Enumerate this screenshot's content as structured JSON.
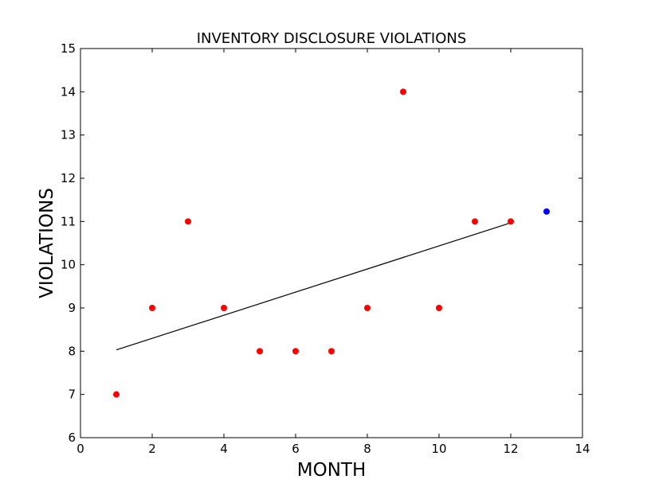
{
  "chart_data": {
    "type": "scatter",
    "title": "INVENTORY DISCLOSURE VIOLATIONS",
    "xlabel": "MONTH",
    "ylabel": "VIOLATIONS",
    "xlim": [
      0,
      14
    ],
    "ylim": [
      6,
      15
    ],
    "xticks": [
      0,
      2,
      4,
      6,
      8,
      10,
      12,
      14
    ],
    "yticks": [
      6,
      7,
      8,
      9,
      10,
      11,
      12,
      13,
      14,
      15
    ],
    "grid": false,
    "series": [
      {
        "color": "#ff0000",
        "points": [
          {
            "x": 1,
            "y": 7
          },
          {
            "x": 2,
            "y": 9
          },
          {
            "x": 3,
            "y": 11
          },
          {
            "x": 4,
            "y": 9
          },
          {
            "x": 5,
            "y": 8
          },
          {
            "x": 6,
            "y": 8
          },
          {
            "x": 7,
            "y": 8
          },
          {
            "x": 8,
            "y": 9
          },
          {
            "x": 9,
            "y": 14
          },
          {
            "x": 10,
            "y": 9
          },
          {
            "x": 11,
            "y": 11
          },
          {
            "x": 12,
            "y": 11
          }
        ]
      },
      {
        "color": "#0000ff",
        "points": [
          {
            "x": 13,
            "y": 11.23
          }
        ]
      }
    ],
    "trend_line": {
      "color": "#000000",
      "start": {
        "x": 1,
        "y": 8.03
      },
      "end": {
        "x": 12,
        "y": 10.97
      }
    }
  }
}
